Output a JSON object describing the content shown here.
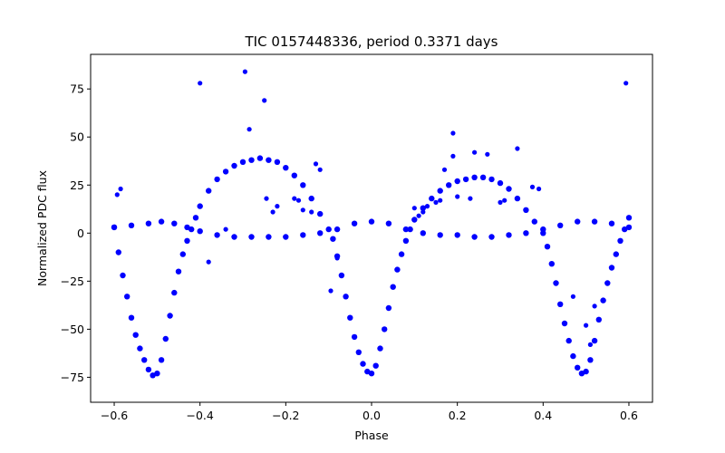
{
  "chart_data": {
    "type": "scatter",
    "title": "TIC 0157448336, period 0.3371 days",
    "xlabel": "Phase",
    "ylabel": "Normalized PDC flux",
    "xlim": [
      -0.655,
      0.655
    ],
    "ylim": [
      -88,
      93
    ],
    "xticks": [
      -0.6,
      -0.4,
      -0.2,
      0.0,
      0.2,
      0.4,
      0.6
    ],
    "xtick_labels": [
      "−0.6",
      "−0.4",
      "−0.2",
      "0.0",
      "0.2",
      "0.4",
      "0.6"
    ],
    "yticks": [
      -75,
      -50,
      -25,
      0,
      25,
      50,
      75
    ],
    "ytick_labels": [
      "−75",
      "−50",
      "−25",
      "0",
      "25",
      "50",
      "75"
    ],
    "grid": false,
    "marker_color": "#0000ff",
    "series": [
      {
        "style": "dense band (light curve, folded twice)",
        "points": [
          [
            -0.6,
            3
          ],
          [
            -0.59,
            -10
          ],
          [
            -0.58,
            -22
          ],
          [
            -0.57,
            -33
          ],
          [
            -0.56,
            -44
          ],
          [
            -0.55,
            -53
          ],
          [
            -0.54,
            -60
          ],
          [
            -0.53,
            -66
          ],
          [
            -0.52,
            -71
          ],
          [
            -0.51,
            -74
          ],
          [
            -0.5,
            -73
          ],
          [
            -0.49,
            -66
          ],
          [
            -0.48,
            -55
          ],
          [
            -0.47,
            -43
          ],
          [
            -0.46,
            -31
          ],
          [
            -0.45,
            -20
          ],
          [
            -0.44,
            -11
          ],
          [
            -0.43,
            -4
          ],
          [
            -0.42,
            2
          ],
          [
            -0.41,
            8
          ],
          [
            -0.4,
            14
          ],
          [
            -0.38,
            22
          ],
          [
            -0.36,
            28
          ],
          [
            -0.34,
            32
          ],
          [
            -0.32,
            35
          ],
          [
            -0.3,
            37
          ],
          [
            -0.28,
            38
          ],
          [
            -0.26,
            39
          ],
          [
            -0.24,
            38
          ],
          [
            -0.22,
            37
          ],
          [
            -0.2,
            34
          ],
          [
            -0.18,
            30
          ],
          [
            -0.16,
            25
          ],
          [
            -0.14,
            18
          ],
          [
            -0.12,
            10
          ],
          [
            -0.1,
            2
          ],
          [
            -0.09,
            -3
          ],
          [
            -0.08,
            -12
          ],
          [
            -0.07,
            -22
          ],
          [
            -0.06,
            -33
          ],
          [
            -0.05,
            -44
          ],
          [
            -0.04,
            -54
          ],
          [
            -0.03,
            -62
          ],
          [
            -0.02,
            -68
          ],
          [
            -0.01,
            -72
          ],
          [
            0.0,
            -73
          ],
          [
            0.01,
            -69
          ],
          [
            0.02,
            -60
          ],
          [
            0.03,
            -50
          ],
          [
            0.04,
            -39
          ],
          [
            0.05,
            -28
          ],
          [
            0.06,
            -19
          ],
          [
            0.07,
            -11
          ],
          [
            0.08,
            -4
          ],
          [
            0.09,
            2
          ],
          [
            0.1,
            7
          ],
          [
            0.12,
            13
          ],
          [
            0.14,
            18
          ],
          [
            0.16,
            22
          ],
          [
            0.18,
            25
          ],
          [
            0.2,
            27
          ],
          [
            0.22,
            28
          ],
          [
            0.24,
            29
          ],
          [
            0.26,
            29
          ],
          [
            0.28,
            28
          ],
          [
            0.3,
            26
          ],
          [
            0.32,
            23
          ],
          [
            0.34,
            18
          ],
          [
            0.36,
            12
          ],
          [
            0.38,
            6
          ],
          [
            0.4,
            0
          ],
          [
            0.41,
            -7
          ],
          [
            0.42,
            -16
          ],
          [
            0.43,
            -26
          ],
          [
            0.44,
            -37
          ],
          [
            0.45,
            -47
          ],
          [
            0.46,
            -56
          ],
          [
            0.47,
            -64
          ],
          [
            0.48,
            -70
          ],
          [
            0.49,
            -73
          ],
          [
            0.5,
            -72
          ],
          [
            0.51,
            -66
          ],
          [
            0.52,
            -56
          ],
          [
            0.53,
            -45
          ],
          [
            0.54,
            -35
          ],
          [
            0.55,
            -26
          ],
          [
            0.56,
            -18
          ],
          [
            0.57,
            -11
          ],
          [
            0.58,
            -4
          ],
          [
            0.59,
            2
          ],
          [
            0.6,
            8
          ]
        ]
      },
      {
        "style": "flat band near zero",
        "points": [
          [
            -0.6,
            3
          ],
          [
            -0.56,
            4
          ],
          [
            -0.52,
            5
          ],
          [
            -0.49,
            6
          ],
          [
            -0.46,
            5
          ],
          [
            -0.43,
            3
          ],
          [
            -0.4,
            1
          ],
          [
            -0.36,
            -1
          ],
          [
            -0.32,
            -2
          ],
          [
            -0.28,
            -2
          ],
          [
            -0.24,
            -2
          ],
          [
            -0.2,
            -2
          ],
          [
            -0.16,
            -1
          ],
          [
            -0.12,
            0
          ],
          [
            -0.08,
            2
          ],
          [
            -0.04,
            5
          ],
          [
            0.0,
            6
          ],
          [
            0.04,
            5
          ],
          [
            0.08,
            2
          ],
          [
            0.12,
            0
          ],
          [
            0.16,
            -1
          ],
          [
            0.2,
            -1
          ],
          [
            0.24,
            -2
          ],
          [
            0.28,
            -2
          ],
          [
            0.32,
            -1
          ],
          [
            0.36,
            0
          ],
          [
            0.4,
            2
          ],
          [
            0.44,
            4
          ],
          [
            0.48,
            6
          ],
          [
            0.52,
            6
          ],
          [
            0.56,
            5
          ],
          [
            0.6,
            3
          ]
        ]
      },
      {
        "style": "outliers",
        "points": [
          [
            -0.593,
            20
          ],
          [
            -0.585,
            23
          ],
          [
            -0.4,
            78
          ],
          [
            -0.38,
            -15
          ],
          [
            -0.34,
            2
          ],
          [
            -0.295,
            84
          ],
          [
            -0.285,
            54
          ],
          [
            -0.25,
            69
          ],
          [
            -0.245,
            18
          ],
          [
            -0.23,
            11
          ],
          [
            -0.22,
            14
          ],
          [
            -0.18,
            18
          ],
          [
            -0.17,
            17
          ],
          [
            -0.16,
            12
          ],
          [
            -0.14,
            11
          ],
          [
            -0.13,
            36
          ],
          [
            -0.12,
            33
          ],
          [
            -0.095,
            -30
          ],
          [
            -0.08,
            -13
          ],
          [
            0.1,
            13
          ],
          [
            0.11,
            9
          ],
          [
            0.12,
            11
          ],
          [
            0.13,
            14
          ],
          [
            0.15,
            16
          ],
          [
            0.16,
            17
          ],
          [
            0.17,
            33
          ],
          [
            0.19,
            40
          ],
          [
            0.19,
            52
          ],
          [
            0.2,
            19
          ],
          [
            0.23,
            18
          ],
          [
            0.24,
            42
          ],
          [
            0.27,
            41
          ],
          [
            0.3,
            16
          ],
          [
            0.31,
            17
          ],
          [
            0.34,
            44
          ],
          [
            0.375,
            24
          ],
          [
            0.39,
            23
          ],
          [
            0.47,
            -33
          ],
          [
            0.5,
            -48
          ],
          [
            0.51,
            -58
          ],
          [
            0.52,
            -38
          ],
          [
            0.593,
            78
          ]
        ]
      }
    ]
  }
}
